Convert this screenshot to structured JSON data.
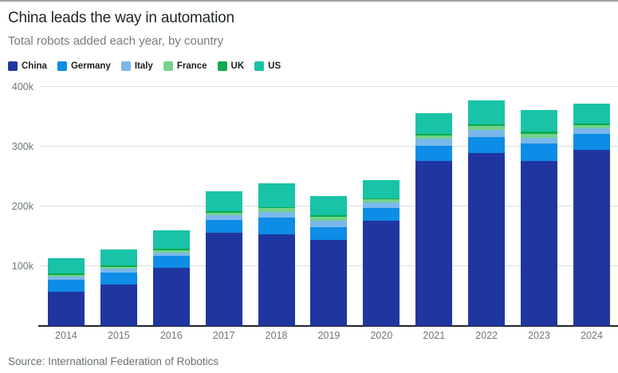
{
  "header": {
    "title": "China leads the way in automation",
    "subtitle": "Total robots added each year, by country"
  },
  "footer": {
    "source": "Source: International Federation of Robotics"
  },
  "chart_data": {
    "type": "bar",
    "stacked": true,
    "title": "China leads the way in automation",
    "subtitle": "Total robots added each year, by country",
    "unit": "robots added per year; values in thousands (57 = 57,000 = 57k)",
    "categories": [
      "2014",
      "2015",
      "2016",
      "2017",
      "2018",
      "2019",
      "2020",
      "2021",
      "2022",
      "2023",
      "2024"
    ],
    "series": [
      {
        "name": "China",
        "color": "#1f36a0",
        "values": [
          57,
          69,
          97,
          156,
          154,
          144,
          176,
          276,
          290,
          276,
          295
        ]
      },
      {
        "name": "Germany",
        "color": "#0d8de6",
        "values": [
          20,
          20,
          20,
          21,
          27,
          21,
          22,
          25,
          26,
          29,
          27
        ]
      },
      {
        "name": "Italy",
        "color": "#7ab8ea",
        "values": [
          6,
          7,
          6,
          8,
          10,
          11,
          9,
          13,
          12,
          10,
          9
        ]
      },
      {
        "name": "France",
        "color": "#74d28b",
        "values": [
          3,
          3,
          4,
          5,
          6,
          7,
          5,
          5,
          7,
          6,
          5
        ]
      },
      {
        "name": "UK",
        "color": "#0cab4c",
        "values": [
          2,
          2,
          2,
          2,
          2,
          2,
          2,
          3,
          3,
          4,
          3
        ]
      },
      {
        "name": "US",
        "color": "#19c3a7",
        "values": [
          26,
          27,
          31,
          33,
          40,
          33,
          30,
          34,
          40,
          37,
          33
        ]
      }
    ],
    "yticks": [
      {
        "value": 100,
        "label": "100k"
      },
      {
        "value": 200,
        "label": "200k"
      },
      {
        "value": 300,
        "label": "300k"
      },
      {
        "value": 400,
        "label": "400k"
      }
    ],
    "ylim": [
      0,
      413
    ],
    "grid": true,
    "legend_position": "top",
    "axis_colors": {
      "grid": "#d9dede",
      "baseline": "#222527",
      "tick_text": "#6e7876"
    }
  }
}
